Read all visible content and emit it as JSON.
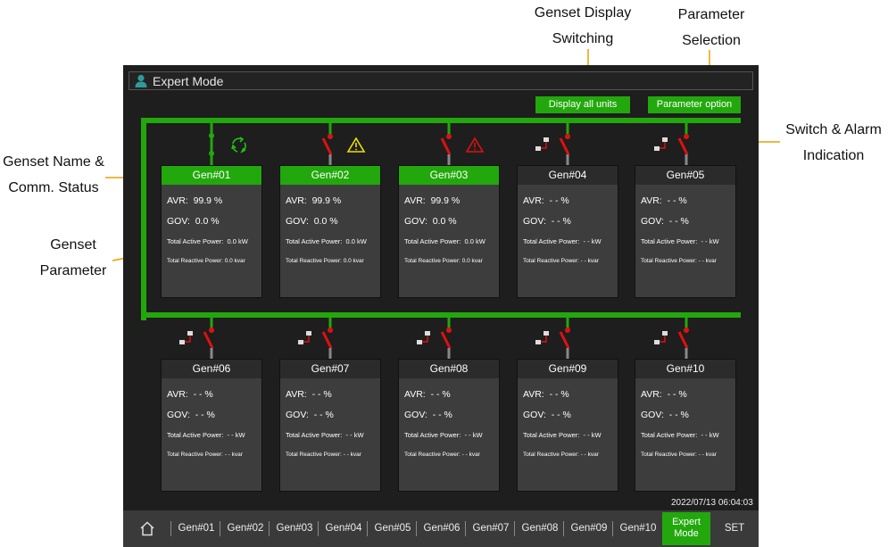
{
  "annotations": {
    "display_switch": [
      "Genset Display",
      "Switching"
    ],
    "param_select": [
      "Parameter",
      "Selection"
    ],
    "switch_alarm": [
      "Switch & Alarm",
      "Indication"
    ],
    "genset_name": [
      "Genset Name &",
      "Comm. Status"
    ],
    "genset_param": [
      "Genset",
      "Parameter"
    ]
  },
  "window": {
    "title": "Expert Mode"
  },
  "toolbar": {
    "display_all": "Display all units",
    "param_option": "Parameter option"
  },
  "labels": {
    "avr": "AVR:",
    "gov": "GOV:",
    "active": "Total Active Power:",
    "reactive": "Total Reactive Power:"
  },
  "gensets": [
    {
      "name": "Gen#01",
      "avr": "99.9 %",
      "gov": "0.0 %",
      "active": "0.0 kW",
      "reactive": "0.0 kvar"
    },
    {
      "name": "Gen#02",
      "avr": "99.9 %",
      "gov": "0.0 %",
      "active": "0.0 kW",
      "reactive": "0.0 kvar"
    },
    {
      "name": "Gen#03",
      "avr": "99.9 %",
      "gov": "0.0 %",
      "active": "0.0 kW",
      "reactive": "0.0 kvar"
    },
    {
      "name": "Gen#04",
      "avr": "- - %",
      "gov": "- - %",
      "active": "- - kW",
      "reactive": "- - kvar"
    },
    {
      "name": "Gen#05",
      "avr": "- - %",
      "gov": "- - %",
      "active": "- - kW",
      "reactive": "- - kvar"
    },
    {
      "name": "Gen#06",
      "avr": "- - %",
      "gov": "- - %",
      "active": "- - kW",
      "reactive": "- - kvar"
    },
    {
      "name": "Gen#07",
      "avr": "- - %",
      "gov": "- - %",
      "active": "- - kW",
      "reactive": "- - kvar"
    },
    {
      "name": "Gen#08",
      "avr": "- - %",
      "gov": "- - %",
      "active": "- - kW",
      "reactive": "- - kvar"
    },
    {
      "name": "Gen#09",
      "avr": "- - %",
      "gov": "- - %",
      "active": "- - kW",
      "reactive": "- - kvar"
    },
    {
      "name": "Gen#10",
      "avr": "- - %",
      "gov": "- - %",
      "active": "- - kW",
      "reactive": "- - kvar"
    }
  ],
  "status": {
    "datetime": "2022/07/13 06:04:03"
  },
  "nav": {
    "items": [
      "Gen#01",
      "Gen#02",
      "Gen#03",
      "Gen#04",
      "Gen#05",
      "Gen#06",
      "Gen#07",
      "Gen#08",
      "Gen#09",
      "Gen#10"
    ],
    "expert": [
      "Expert",
      "Mode"
    ],
    "set": "SET"
  },
  "colors": {
    "accent": "#22a80c",
    "alarm": "#e01010",
    "warning": "#e8e000"
  },
  "icons": {
    "home": "home-icon",
    "user": "user-icon",
    "sync": "sync-icon",
    "warn": "warning-icon",
    "alarm": "alarm-icon",
    "comm": "comm-status-icon"
  }
}
